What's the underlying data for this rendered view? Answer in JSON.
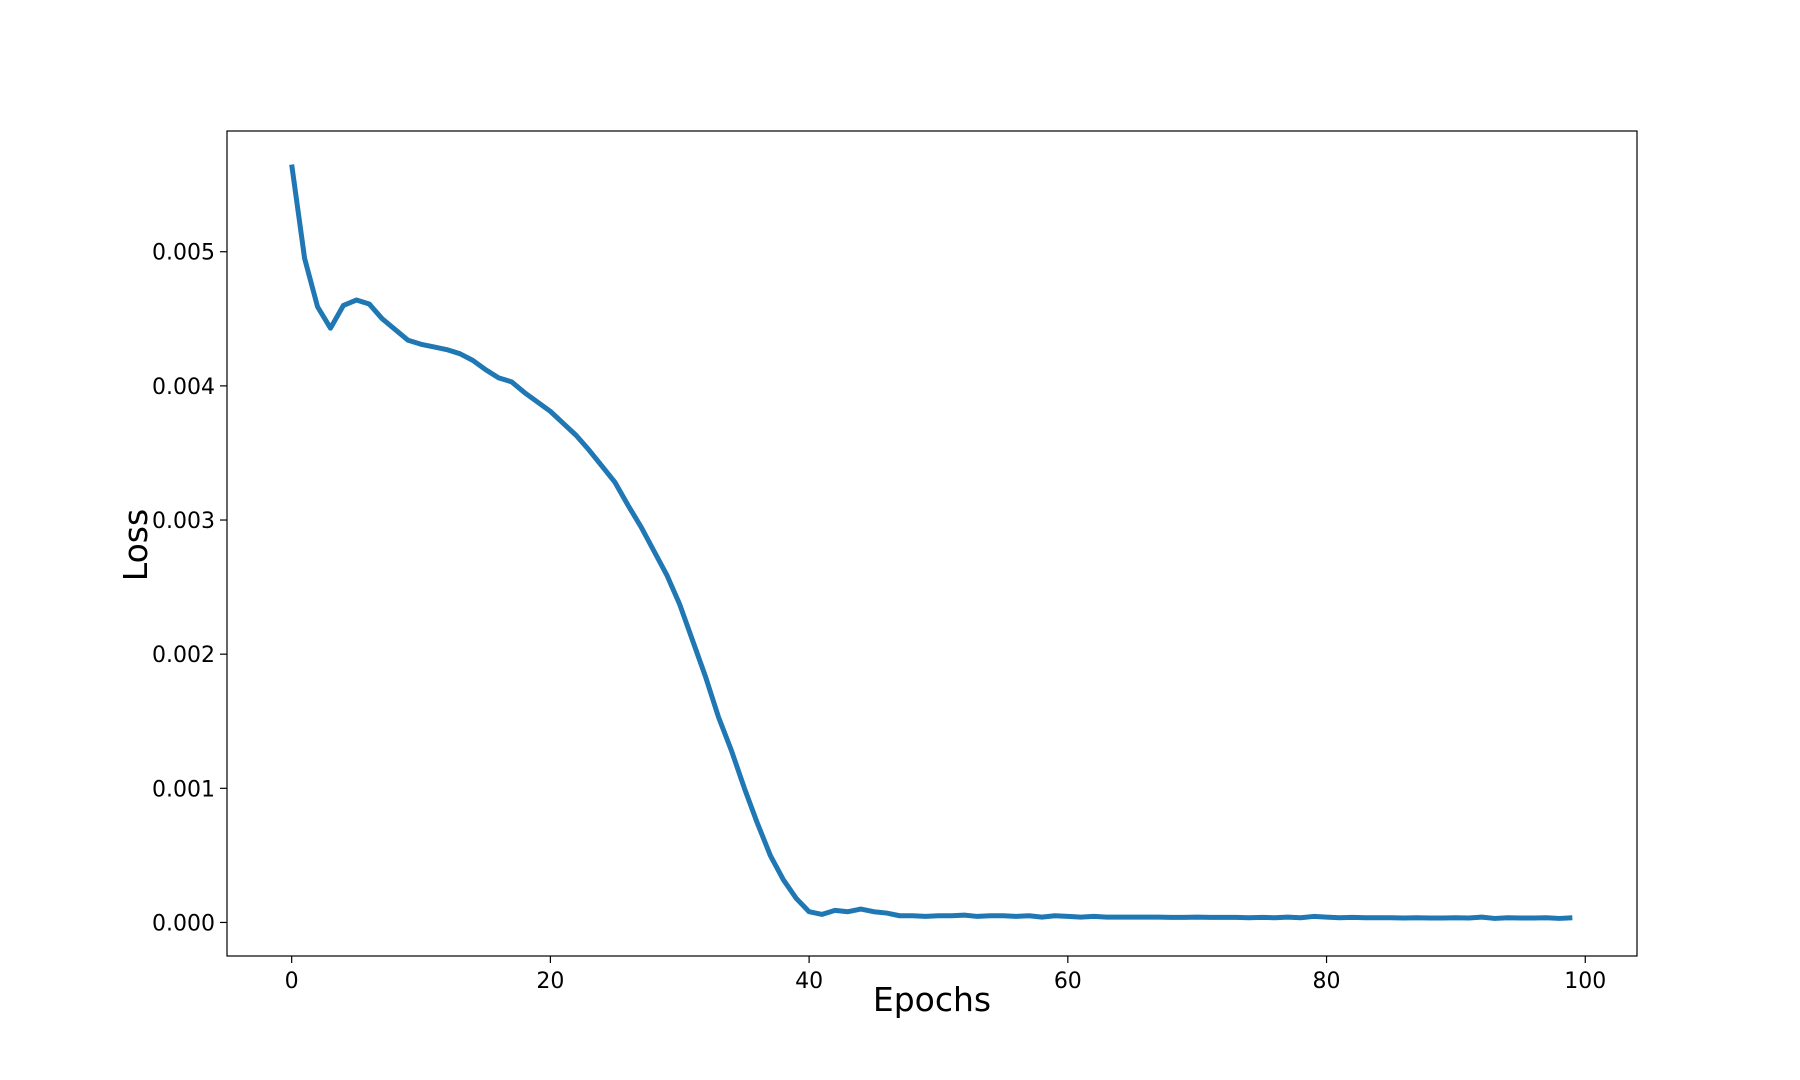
{
  "chart_data": {
    "type": "line",
    "title": "",
    "xlabel": "Epochs",
    "ylabel": "Loss",
    "xlim": [
      -5,
      104
    ],
    "ylim": [
      -0.00025,
      0.0059
    ],
    "x_ticks": [
      0,
      20,
      40,
      60,
      80,
      100
    ],
    "x_tick_labels": [
      "0",
      "20",
      "40",
      "60",
      "80",
      "100"
    ],
    "y_ticks": [
      0,
      0.001,
      0.002,
      0.003,
      0.004,
      0.005
    ],
    "y_tick_labels": [
      "0.000",
      "0.001",
      "0.002",
      "0.003",
      "0.004",
      "0.005"
    ],
    "grid": false,
    "legend": "none",
    "series": [
      {
        "color": "#1f77b4",
        "x": [
          0,
          1,
          2,
          3,
          4,
          5,
          6,
          7,
          8,
          9,
          10,
          11,
          12,
          13,
          14,
          15,
          16,
          17,
          18,
          19,
          20,
          21,
          22,
          23,
          24,
          25,
          26,
          27,
          28,
          29,
          30,
          31,
          32,
          33,
          34,
          35,
          36,
          37,
          38,
          39,
          40,
          41,
          42,
          43,
          44,
          45,
          46,
          47,
          48,
          49,
          50,
          51,
          52,
          53,
          54,
          55,
          56,
          57,
          58,
          59,
          60,
          61,
          62,
          63,
          64,
          65,
          66,
          67,
          68,
          69,
          70,
          71,
          72,
          73,
          74,
          75,
          76,
          77,
          78,
          79,
          80,
          81,
          82,
          83,
          84,
          85,
          86,
          87,
          88,
          89,
          90,
          91,
          92,
          93,
          94,
          95,
          96,
          97,
          98,
          99
        ],
        "values": [
          0.00565,
          0.00495,
          0.00459,
          0.00443,
          0.0046,
          0.00464,
          0.00461,
          0.0045,
          0.00442,
          0.00434,
          0.00431,
          0.00429,
          0.00427,
          0.00424,
          0.00419,
          0.00412,
          0.00406,
          0.00403,
          0.00395,
          0.00388,
          0.00381,
          0.00372,
          0.00363,
          0.00352,
          0.0034,
          0.00328,
          0.00311,
          0.00295,
          0.00277,
          0.00259,
          0.00237,
          0.0021,
          0.00183,
          0.00153,
          0.00128,
          0.001,
          0.00074,
          0.0005,
          0.00032,
          0.00018,
          8e-05,
          6e-05,
          9e-05,
          8e-05,
          0.0001,
          8e-05,
          7e-05,
          5e-05,
          5e-05,
          4.5e-05,
          5e-05,
          5e-05,
          5.5e-05,
          4.5e-05,
          5e-05,
          5e-05,
          4.5e-05,
          5e-05,
          4e-05,
          5e-05,
          4.5e-05,
          4e-05,
          4.5e-05,
          4e-05,
          4e-05,
          4e-05,
          4e-05,
          4e-05,
          3.8e-05,
          3.8e-05,
          4e-05,
          3.8e-05,
          3.8e-05,
          3.8e-05,
          3.5e-05,
          3.8e-05,
          3.5e-05,
          4e-05,
          3.5e-05,
          4.5e-05,
          4e-05,
          3.5e-05,
          3.8e-05,
          3.5e-05,
          3.5e-05,
          3.5e-05,
          3.3e-05,
          3.5e-05,
          3.3e-05,
          3.3e-05,
          3.5e-05,
          3.3e-05,
          4e-05,
          3e-05,
          3.5e-05,
          3.3e-05,
          3.3e-05,
          3.5e-05,
          3e-05,
          3.5e-05
        ]
      }
    ]
  }
}
